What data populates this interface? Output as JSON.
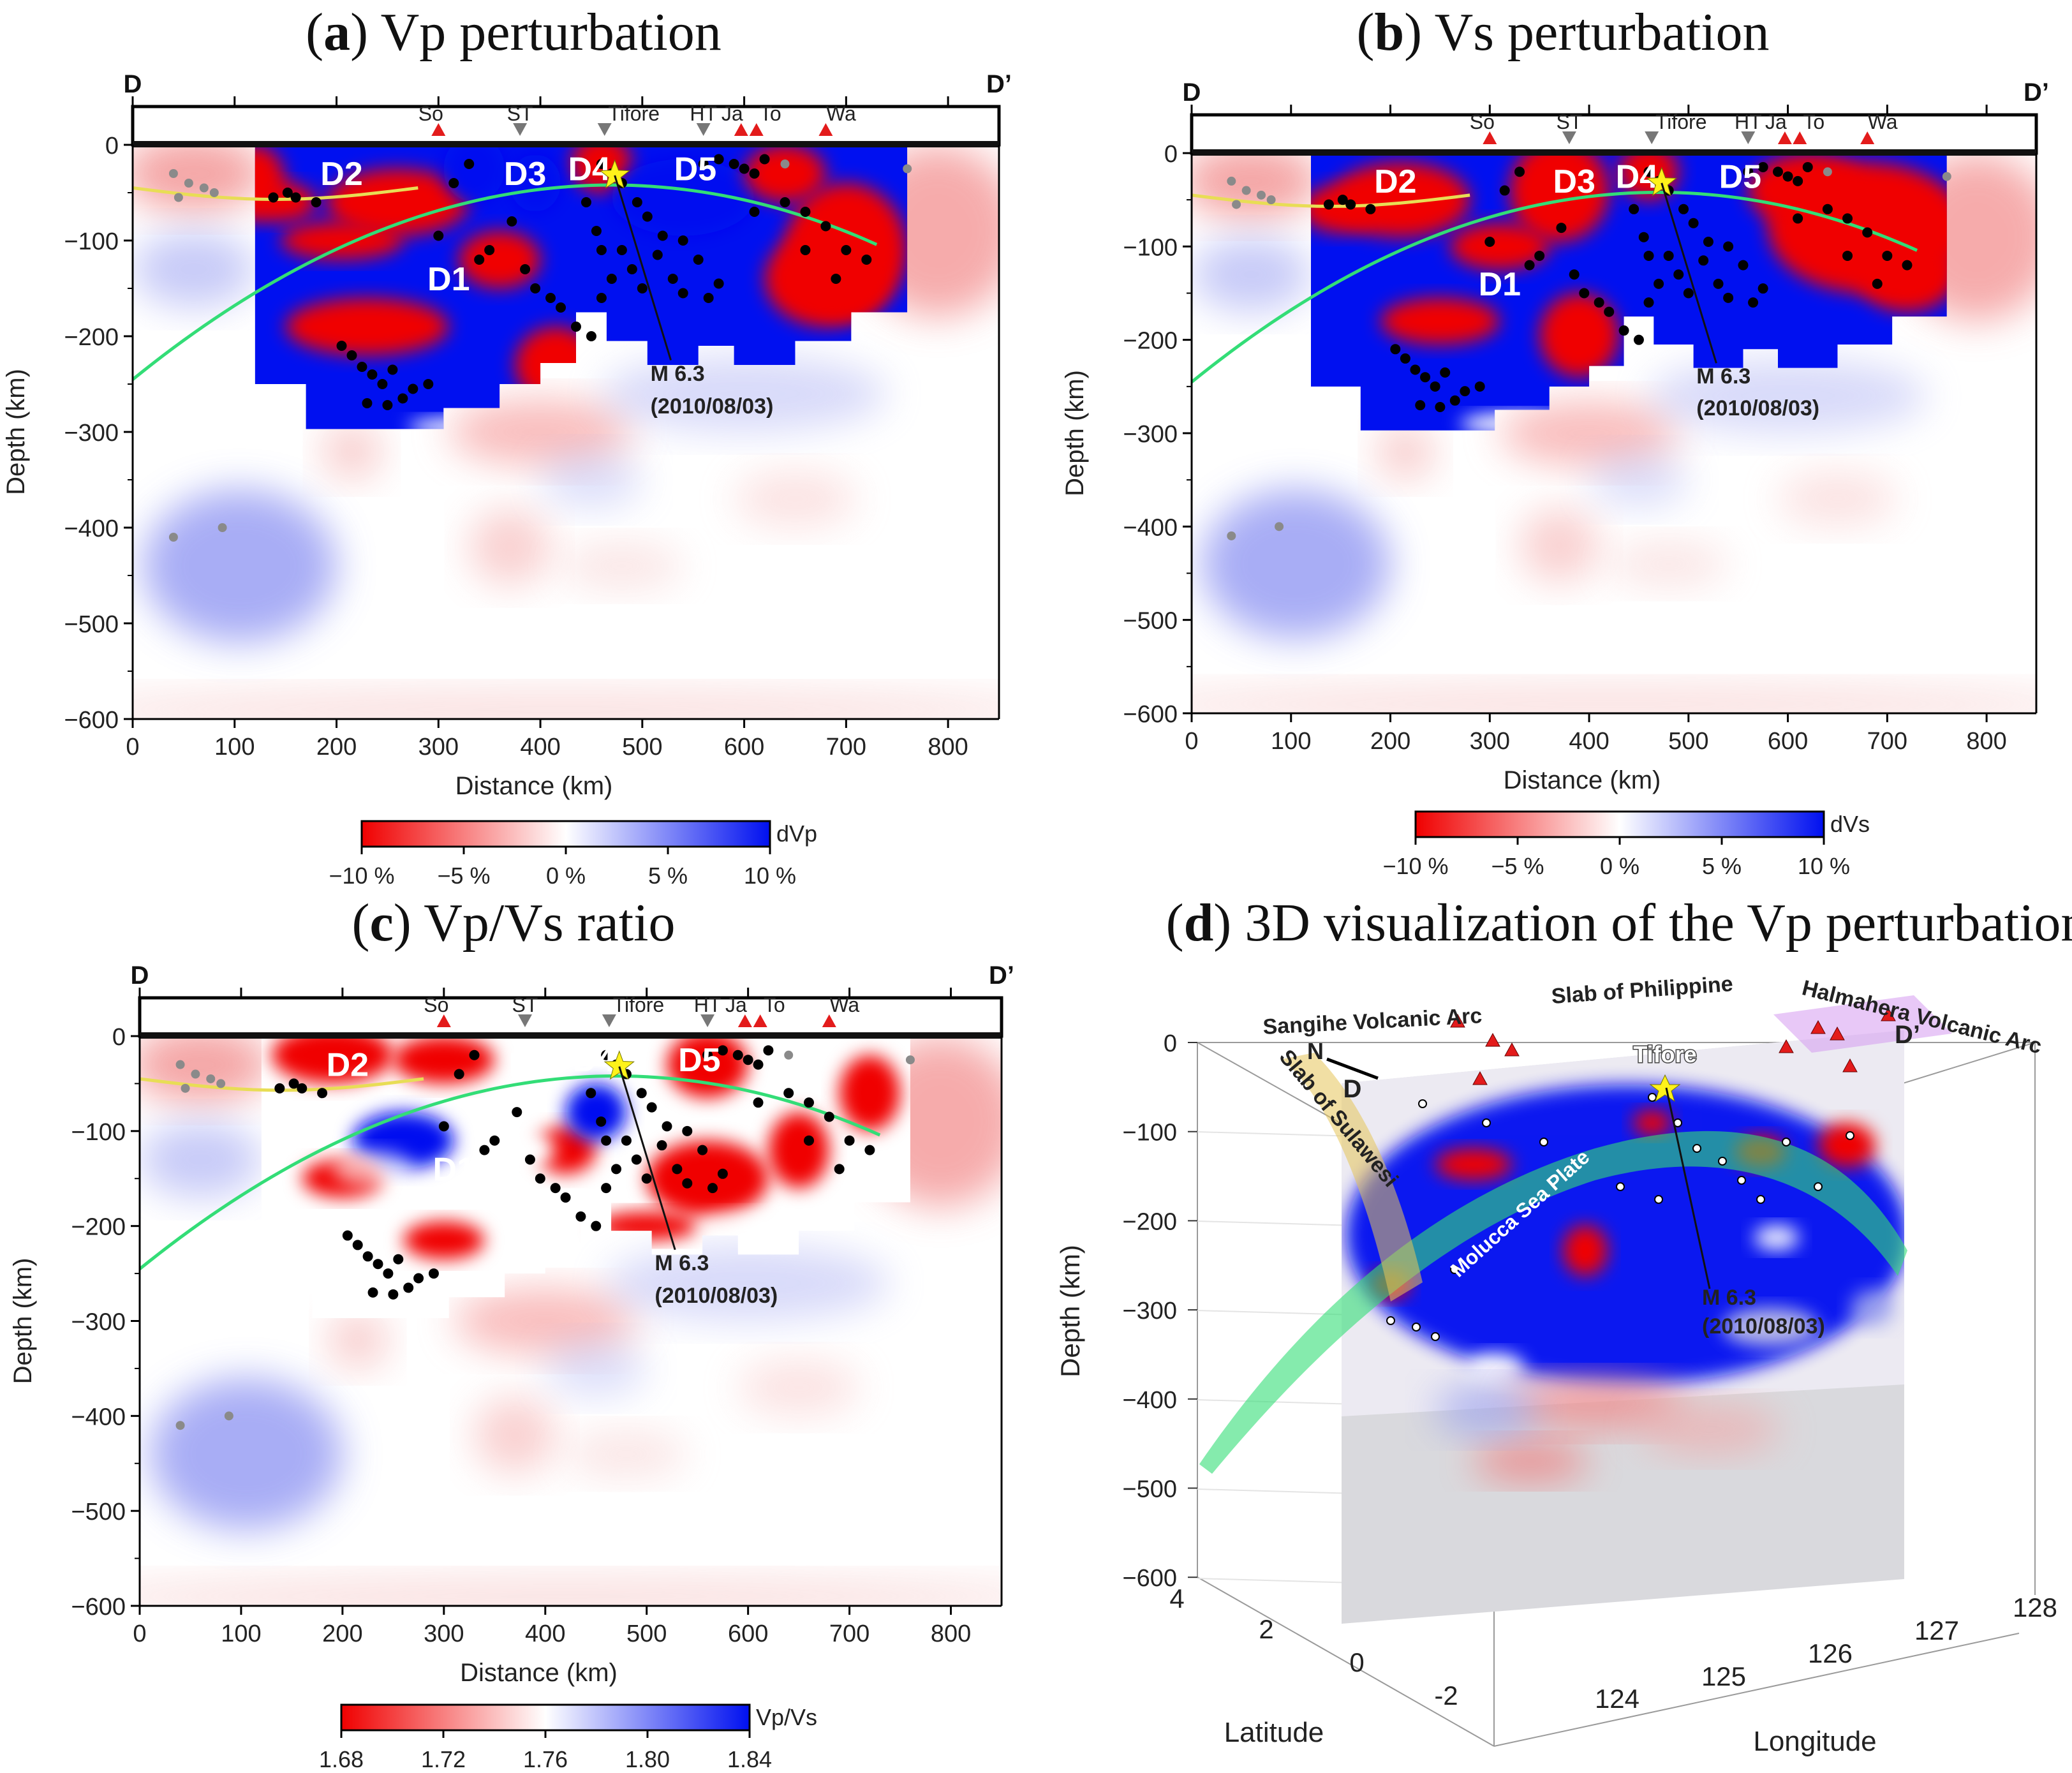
{
  "panels": {
    "a": {
      "letter": "a",
      "title_rest": "Vp perturbation",
      "cbar_label": "dVp",
      "cbar_ticks": [
        "−10 %",
        "−5 %",
        "0 %",
        "5 %",
        "10 %"
      ]
    },
    "b": {
      "letter": "b",
      "title_rest": "Vs perturbation",
      "cbar_label": "dVs",
      "cbar_ticks": [
        "−10 %",
        "−5 %",
        "0 %",
        "5 %",
        "10 %"
      ]
    },
    "c": {
      "letter": "c",
      "title_rest": "Vp/Vs ratio",
      "cbar_label": "Vp/Vs",
      "cbar_ticks": [
        "1.68",
        "1.72",
        "1.76",
        "1.80",
        "1.84"
      ]
    },
    "d": {
      "letter": "d",
      "title_rest": "3D visualization of the Vp perturbation"
    }
  },
  "section": {
    "ends": {
      "left": "D",
      "right": "D’"
    },
    "volcanoes": [
      "So",
      "ST",
      "Tifore",
      "HT",
      "Ja",
      "To",
      "Wa"
    ],
    "regions": [
      "D1",
      "D2",
      "D3",
      "D4",
      "D5"
    ],
    "event": {
      "line1": "M 6.3",
      "line2": "(2010/08/03)"
    },
    "xlabel": "Distance (km)",
    "ylabel": "Depth (km)"
  },
  "chart_data": [
    {
      "type": "heatmap",
      "panel": "a",
      "xlabel": "Distance (km)",
      "ylabel": "Depth (km)",
      "xlim": [
        0,
        850
      ],
      "ylim": [
        -600,
        0
      ],
      "xticks": [
        0,
        100,
        200,
        300,
        400,
        500,
        600,
        700,
        800
      ],
      "yticks": [
        0,
        -100,
        -200,
        -300,
        -400,
        -500,
        -600
      ],
      "colorbar": {
        "label": "dVp",
        "range": [
          -10,
          10
        ],
        "unit": "%",
        "low": "red",
        "high": "blue"
      },
      "anomalies": [
        {
          "label": "D2",
          "x": 200,
          "depth": -30,
          "sign": "high"
        },
        {
          "label": "D3",
          "x": 385,
          "depth": -30,
          "sign": "high"
        },
        {
          "label": "D4",
          "x": 455,
          "depth": -25,
          "sign": "low"
        },
        {
          "label": "D5",
          "x": 555,
          "depth": -25,
          "sign": "high"
        },
        {
          "label": "D1",
          "x": 310,
          "depth": -140,
          "sign": "high"
        }
      ]
    },
    {
      "type": "heatmap",
      "panel": "b",
      "xlabel": "Distance (km)",
      "ylabel": "Depth (km)",
      "xlim": [
        0,
        850
      ],
      "ylim": [
        -600,
        0
      ],
      "xticks": [
        0,
        100,
        200,
        300,
        400,
        500,
        600,
        700,
        800
      ],
      "yticks": [
        0,
        -100,
        -200,
        -300,
        -400,
        -500,
        -600
      ],
      "colorbar": {
        "label": "dVs",
        "range": [
          -10,
          10
        ],
        "unit": "%",
        "low": "red",
        "high": "blue"
      }
    },
    {
      "type": "heatmap",
      "panel": "c",
      "xlabel": "Distance (km)",
      "ylabel": "Depth (km)",
      "xlim": [
        0,
        850
      ],
      "ylim": [
        -600,
        0
      ],
      "xticks": [
        0,
        100,
        200,
        300,
        400,
        500,
        600,
        700,
        800
      ],
      "yticks": [
        0,
        -100,
        -200,
        -300,
        -400,
        -500,
        -600
      ],
      "colorbar": {
        "label": "Vp/Vs",
        "range": [
          1.68,
          1.84
        ],
        "low": "red",
        "high": "blue"
      }
    },
    {
      "type": "3d",
      "panel": "d",
      "zlabel": "Depth (km)",
      "ylabel": "Latitude",
      "xlabel": "Longitude",
      "zticks": [
        0,
        -100,
        -200,
        -300,
        -400,
        -500,
        -600
      ],
      "yticks": [
        4,
        2,
        0,
        -2
      ],
      "xticks": [
        124,
        125,
        126,
        127,
        128
      ],
      "annotations": [
        "Sangihe Volcanic Arc",
        "Slab of Philippine",
        "Halmahera Volcanic Arc",
        "Slab of Sulawesi",
        "Molucca Sea Plate",
        "Tifore",
        "N",
        "D",
        "D’",
        "M 6.3",
        "(2010/08/03)"
      ]
    }
  ],
  "colors": {
    "red": "#f00000",
    "blue": "#0010f0",
    "slab_line": "#33dd77",
    "yellow_line": "#e8dd55",
    "volcano": "#e31b1b",
    "star": "#fff21a",
    "quake": "#000000"
  },
  "map3d": {
    "labels": {
      "sangihe": "Sangihe Volcanic Arc",
      "philippine": "Slab of Philippine",
      "halmahera": "Halmahera Volcanic Arc",
      "sulawesi": "Slab of Sulawesi",
      "molucca": "Molucca Sea Plate",
      "tifore": "Tifore",
      "north": "N",
      "d": "D",
      "dprime": "D’"
    },
    "event": {
      "line1": "M 6.3",
      "line2": "(2010/08/03)"
    },
    "zlabel": "Depth (km)",
    "ylabel": "Latitude",
    "xlabel": "Longitude",
    "zticks": [
      "0",
      "−100",
      "−200",
      "−300",
      "−400",
      "−500",
      "−600"
    ],
    "yticks": [
      "4",
      "2",
      "0",
      "-2"
    ],
    "xticks": [
      "124",
      "125",
      "126",
      "127",
      "128"
    ]
  }
}
